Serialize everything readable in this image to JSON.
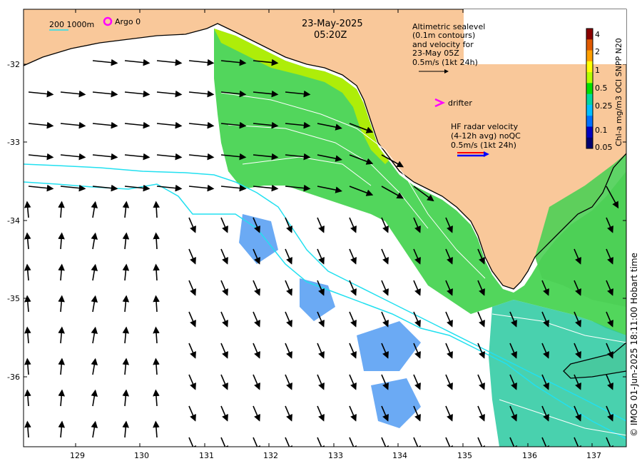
{
  "map": {
    "title_date": "23-May-2025",
    "title_time": "05:20Z",
    "depth_legend": "200  1000m",
    "argo_label": "Argo 0",
    "altimetry_lines": [
      "Altimetric sealevel",
      "(0.1m contours)",
      "and velocity for",
      "23-May 05Z",
      "0.5m/s (1kt 24h)"
    ],
    "drifter_label": "drifter",
    "hf_radar_lines": [
      "HF radar velocity",
      "(4-12h avg) noQC",
      "0.5m/s (1kt 24h)"
    ],
    "credit": "© IMOS 01-Jun-2025 18:11:00 Hobart time",
    "lon_ticks": [
      "129",
      "130",
      "131",
      "132",
      "133",
      "134",
      "135",
      "136",
      "137"
    ],
    "lat_ticks": [
      "-32",
      "-33",
      "-34",
      "-35",
      "-36"
    ],
    "lon_range": [
      128.2,
      137.5
    ],
    "lat_range": [
      -36.9,
      -31.3
    ]
  },
  "colorbar": {
    "title": "Chl-a mg/m3 OCI SNPP N20",
    "ticks": [
      "4",
      "2",
      "1",
      "0.5",
      "0.25",
      "0.1",
      "0.05"
    ],
    "colors": [
      "#8b0000",
      "#e05a00",
      "#ffa000",
      "#ffff00",
      "#b4ff00",
      "#00e000",
      "#00d8a0",
      "#00c0ff",
      "#0070ff",
      "#0000c0",
      "#000070"
    ]
  },
  "colors": {
    "land": "#f9c89a",
    "sea_white": "#ffffff",
    "contour_cyan": "#22e0f0",
    "argo_magenta": "#ff00ff"
  }
}
